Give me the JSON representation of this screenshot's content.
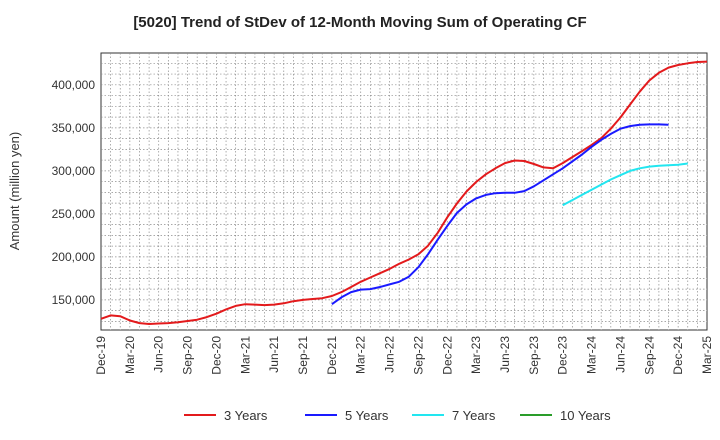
{
  "title": "[5020]  Trend of StDev of 12-Month Moving Sum of Operating CF",
  "chart_data": {
    "type": "line",
    "title": "[5020]  Trend of StDev of 12-Month Moving Sum of Operating CF",
    "xlabel": "",
    "ylabel": "Amount (million yen)",
    "ylim": [
      115000,
      437000
    ],
    "y_ticks": [
      150000,
      200000,
      250000,
      300000,
      350000,
      400000
    ],
    "y_tick_labels": [
      "150,000",
      "200,000",
      "250,000",
      "300,000",
      "350,000",
      "400,000"
    ],
    "x_tick_labels": [
      "Dec-19",
      "Mar-20",
      "Jun-20",
      "Sep-20",
      "Dec-20",
      "Mar-21",
      "Jun-21",
      "Sep-21",
      "Dec-21",
      "Mar-22",
      "Jun-22",
      "Sep-22",
      "Dec-22",
      "Mar-23",
      "Jun-23",
      "Sep-23",
      "Dec-23",
      "Mar-24",
      "Jun-24",
      "Sep-24",
      "Dec-24",
      "Mar-25"
    ],
    "grid": true,
    "legend_position": "bottom",
    "series": [
      {
        "name": "3 Years",
        "color": "#e31a1c",
        "start_month_index": 0,
        "values": [
          128000,
          132000,
          131000,
          126000,
          123000,
          122000,
          122500,
          123000,
          124000,
          125500,
          127000,
          130000,
          134000,
          139000,
          143000,
          145000,
          144500,
          144000,
          144500,
          146000,
          148500,
          150000,
          151000,
          152000,
          154500,
          159000,
          165000,
          171000,
          176000,
          181000,
          186000,
          192000,
          197000,
          203000,
          213000,
          228000,
          246000,
          262000,
          276000,
          287000,
          296000,
          303000,
          309000,
          312000,
          311500,
          308000,
          304000,
          303000,
          309000,
          316000,
          323000,
          330000,
          338000,
          349000,
          362000,
          377000,
          392000,
          405000,
          414000,
          420000,
          423000,
          425000,
          426500,
          427000
        ]
      },
      {
        "name": "5 Years",
        "color": "#1a1aff",
        "start_month_index": 24,
        "values": [
          145000,
          153000,
          159000,
          162000,
          162500,
          165000,
          168000,
          171000,
          177000,
          188000,
          203000,
          220000,
          236000,
          251000,
          261000,
          268000,
          272000,
          274000,
          274500,
          274500,
          276500,
          282000,
          289000,
          296000,
          303000,
          311000,
          319000,
          328000,
          336000,
          343000,
          349000,
          352000,
          353500,
          354000,
          354000,
          353500
        ]
      },
      {
        "name": "7 Years",
        "color": "#22e6f0",
        "start_month_index": 48,
        "values": [
          260000,
          266000,
          272000,
          278000,
          284000,
          290000,
          295000,
          300000,
          303000,
          305000,
          306000,
          306500,
          307000,
          308500
        ]
      },
      {
        "name": "10 Years",
        "color": "#2a9d2a",
        "start_month_index": 0,
        "values": []
      }
    ]
  }
}
